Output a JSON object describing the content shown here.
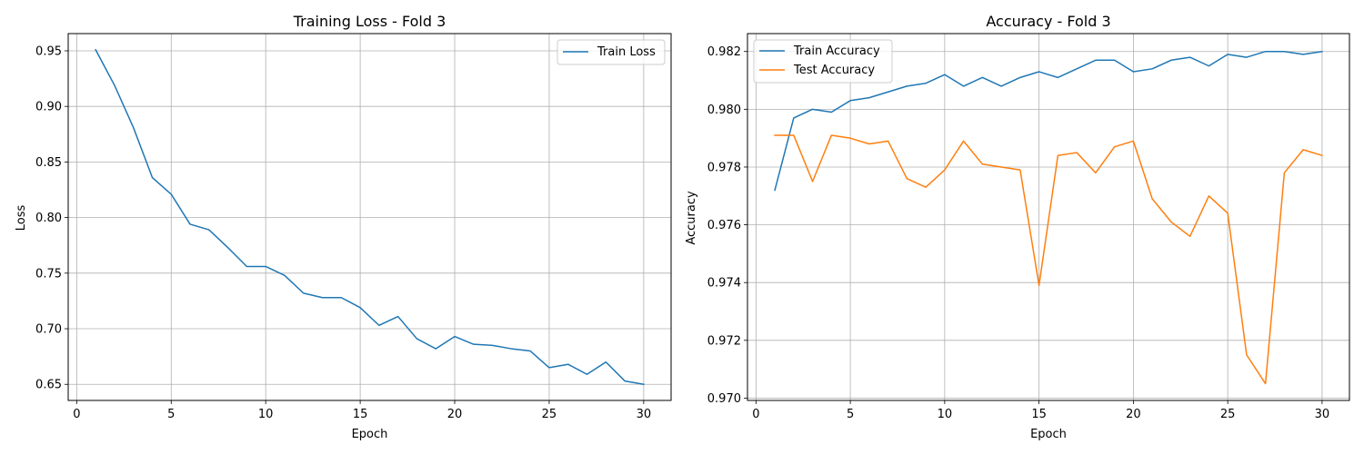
{
  "chart_data": [
    {
      "type": "line",
      "title": "Training Loss - Fold 3",
      "xlabel": "Epoch",
      "ylabel": "Loss",
      "xlim": [
        -0.45,
        31.45
      ],
      "ylim": [
        0.6355,
        0.9655
      ],
      "xticks": [
        0,
        5,
        10,
        15,
        20,
        25,
        30
      ],
      "xtick_labels": [
        "0",
        "5",
        "10",
        "15",
        "20",
        "25",
        "30"
      ],
      "yticks": [
        0.65,
        0.7,
        0.75,
        0.8,
        0.85,
        0.9,
        0.95
      ],
      "ytick_labels": [
        "0.65",
        "0.70",
        "0.75",
        "0.80",
        "0.85",
        "0.90",
        "0.95"
      ],
      "grid": true,
      "legend": "upper right",
      "x": [
        1,
        2,
        3,
        4,
        5,
        6,
        7,
        8,
        9,
        10,
        11,
        12,
        13,
        14,
        15,
        16,
        17,
        18,
        19,
        20,
        21,
        22,
        23,
        24,
        25,
        26,
        27,
        28,
        29,
        30
      ],
      "series": [
        {
          "name": "Train Loss",
          "color": "#1f77b4",
          "values": [
            0.951,
            0.919,
            0.881,
            0.836,
            0.821,
            0.794,
            0.789,
            0.773,
            0.756,
            0.756,
            0.748,
            0.732,
            0.728,
            0.728,
            0.719,
            0.703,
            0.711,
            0.691,
            0.682,
            0.693,
            0.686,
            0.685,
            0.682,
            0.68,
            0.665,
            0.668,
            0.659,
            0.67,
            0.653,
            0.65
          ]
        }
      ]
    },
    {
      "type": "line",
      "title": "Accuracy - Fold 3",
      "xlabel": "Epoch",
      "ylabel": "Accuracy",
      "xlim": [
        -0.45,
        31.45
      ],
      "ylim": [
        0.96992,
        0.98262
      ],
      "xticks": [
        0,
        5,
        10,
        15,
        20,
        25,
        30
      ],
      "xtick_labels": [
        "0",
        "5",
        "10",
        "15",
        "20",
        "25",
        "30"
      ],
      "yticks": [
        0.97,
        0.972,
        0.974,
        0.976,
        0.978,
        0.98,
        0.982
      ],
      "ytick_labels": [
        "0.970",
        "0.972",
        "0.974",
        "0.976",
        "0.978",
        "0.980",
        "0.982"
      ],
      "grid": true,
      "legend": "upper left",
      "x": [
        1,
        2,
        3,
        4,
        5,
        6,
        7,
        8,
        9,
        10,
        11,
        12,
        13,
        14,
        15,
        16,
        17,
        18,
        19,
        20,
        21,
        22,
        23,
        24,
        25,
        26,
        27,
        28,
        29,
        30
      ],
      "series": [
        {
          "name": "Train Accuracy",
          "color": "#1f77b4",
          "values": [
            0.9772,
            0.9797,
            0.98,
            0.9799,
            0.9803,
            0.9804,
            0.9806,
            0.9808,
            0.9809,
            0.9812,
            0.9808,
            0.9811,
            0.9808,
            0.9811,
            0.9813,
            0.9811,
            0.9814,
            0.9817,
            0.9817,
            0.9813,
            0.9814,
            0.9817,
            0.9818,
            0.9815,
            0.9819,
            0.9818,
            0.982,
            0.982,
            0.9819,
            0.982
          ]
        },
        {
          "name": "Test Accuracy",
          "color": "#ff7f0e",
          "values": [
            0.9791,
            0.9791,
            0.9775,
            0.9791,
            0.979,
            0.9788,
            0.9789,
            0.9776,
            0.9773,
            0.9779,
            0.9789,
            0.9781,
            0.978,
            0.9779,
            0.9739,
            0.9784,
            0.9785,
            0.9778,
            0.9787,
            0.9789,
            0.9769,
            0.9761,
            0.9756,
            0.977,
            0.9764,
            0.9715,
            0.9705,
            0.9778,
            0.9786,
            0.9784
          ]
        }
      ]
    }
  ]
}
